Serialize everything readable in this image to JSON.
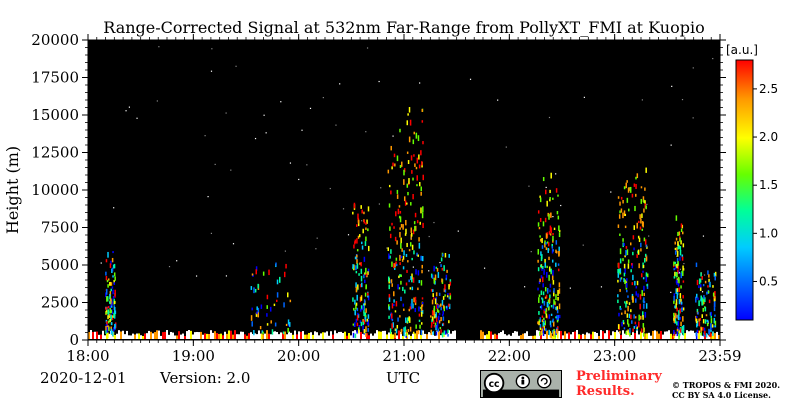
{
  "chart_data": {
    "type": "heatmap",
    "title": "Range-Corrected Signal at 532nm Far-Range from PollyXT_FMI at Kuopio",
    "ylabel": "Height (m)",
    "xlabel": "UTC",
    "x_ticks": [
      "18:00",
      "19:00",
      "20:00",
      "21:00",
      "22:00",
      "23:00",
      "23:59"
    ],
    "x_range_hours": [
      18.0,
      23.983
    ],
    "y_ticks": [
      0,
      2500,
      5000,
      7500,
      10000,
      12500,
      15000,
      17500,
      20000
    ],
    "ylim": [
      0,
      20000
    ],
    "colorbar": {
      "unit": "[a.u.]",
      "ticks": [
        0.5,
        1.0,
        1.5,
        2.0,
        2.5
      ],
      "range": [
        0.1,
        2.8
      ],
      "colormap": [
        "#0000ff",
        "#0066ff",
        "#00ccff",
        "#00ff99",
        "#66ff00",
        "#ffff00",
        "#ff9900",
        "#ff0000"
      ]
    },
    "background_color": "#000000"
  },
  "footer": {
    "date": "2020-12-01",
    "version": "Version: 2.0",
    "preliminary_line1": "Preliminary",
    "preliminary_line2": "Results.",
    "copyright_line1": "© TROPOS & FMI 2020.",
    "copyright_line2": "CC BY SA 4.0 License.",
    "license_badge": "cc BY SA"
  }
}
